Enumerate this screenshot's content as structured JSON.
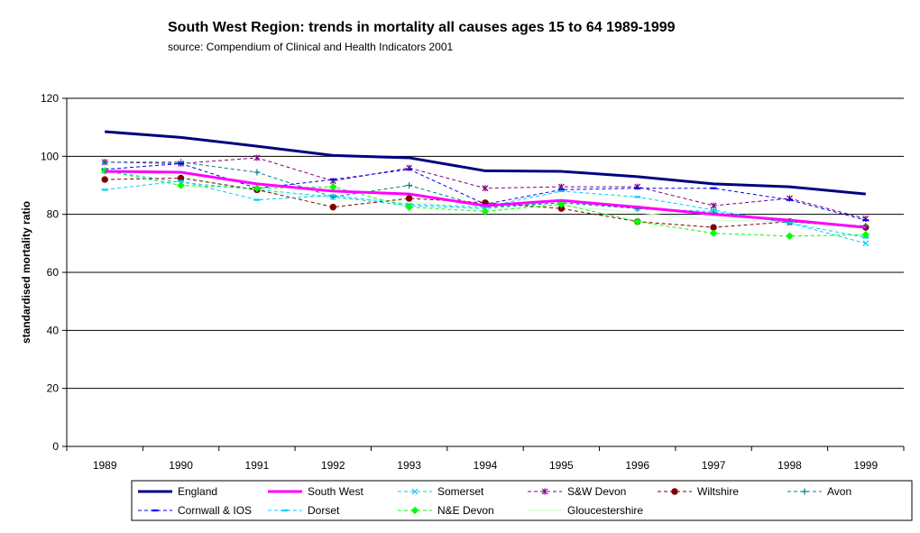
{
  "chart_data": {
    "type": "line",
    "title": "South West Region:  trends in mortality all causes ages 15 to 64  1989-1999",
    "subtitle": "source: Compendium of Clinical and Health Indicators  2001",
    "xlabel": "",
    "ylabel": "standardised mortality ratio",
    "ylim": [
      0,
      120
    ],
    "yticks": [
      0,
      20,
      40,
      60,
      80,
      100,
      120
    ],
    "grid": true,
    "legend_position": "bottom",
    "categories": [
      "1989",
      "1990",
      "1991",
      "1992",
      "1993",
      "1994",
      "1995",
      "1996",
      "1997",
      "1998",
      "1999"
    ],
    "series": [
      {
        "name": "England",
        "color": "#000080",
        "style": "solid-thick",
        "marker": "none",
        "values": [
          108.5,
          106.5,
          103.5,
          100.3,
          99.5,
          95.0,
          94.8,
          93.0,
          90.5,
          89.5,
          87.0
        ]
      },
      {
        "name": "South West",
        "color": "#ff00ff",
        "style": "solid-thick",
        "marker": "none",
        "values": [
          94.8,
          94.5,
          90.5,
          88.0,
          87.0,
          83.0,
          84.8,
          82.5,
          80.0,
          78.0,
          75.5
        ]
      },
      {
        "name": "Somerset",
        "color": "#00ccff",
        "style": "dashed",
        "marker": "x",
        "values": [
          95.0,
          91.0,
          88.5,
          86.0,
          83.0,
          82.0,
          84.0,
          82.0,
          81.0,
          77.0,
          70.0
        ]
      },
      {
        "name": "S&W Devon",
        "color": "#800080",
        "style": "dashed",
        "marker": "star",
        "values": [
          98.0,
          97.5,
          99.5,
          91.5,
          96.0,
          89.0,
          89.5,
          89.5,
          83.0,
          85.5,
          78.5
        ]
      },
      {
        "name": "Wiltshire",
        "color": "#800000",
        "style": "dashed",
        "marker": "circle",
        "values": [
          92.0,
          92.5,
          88.5,
          82.5,
          85.5,
          84.0,
          82.0,
          77.5,
          75.5,
          77.5,
          75.5
        ]
      },
      {
        "name": "Avon",
        "color": "#008080",
        "style": "dashed",
        "marker": "plus",
        "values": [
          98.0,
          98.0,
          94.5,
          86.0,
          90.0,
          82.5,
          84.0,
          82.0,
          80.5,
          77.5,
          76.0
        ]
      },
      {
        "name": "Cornwall & IOS",
        "color": "#0000ff",
        "style": "dashed",
        "marker": "dash",
        "values": [
          95.5,
          97.5,
          89.0,
          92.0,
          95.5,
          83.5,
          88.5,
          89.0,
          89.0,
          85.0,
          78.0
        ]
      },
      {
        "name": "Dorset",
        "color": "#00ccff",
        "style": "dashed",
        "marker": "dash",
        "values": [
          88.5,
          91.5,
          85.0,
          86.5,
          83.5,
          82.5,
          88.0,
          86.0,
          81.5,
          77.0,
          72.0
        ]
      },
      {
        "name": "N&E Devon",
        "color": "#00ff00",
        "style": "dashed",
        "marker": "diamond",
        "values": [
          95.0,
          90.0,
          89.0,
          89.5,
          82.5,
          81.0,
          83.5,
          77.5,
          73.5,
          72.5,
          73.0
        ]
      },
      {
        "name": "Gloucestershire",
        "color": "#ccffcc",
        "style": "solid",
        "marker": "none",
        "values": [
          96.0,
          93.0,
          88.0,
          85.5,
          84.5,
          81.5,
          83.0,
          80.5,
          78.0,
          77.5,
          75.0
        ]
      }
    ]
  }
}
